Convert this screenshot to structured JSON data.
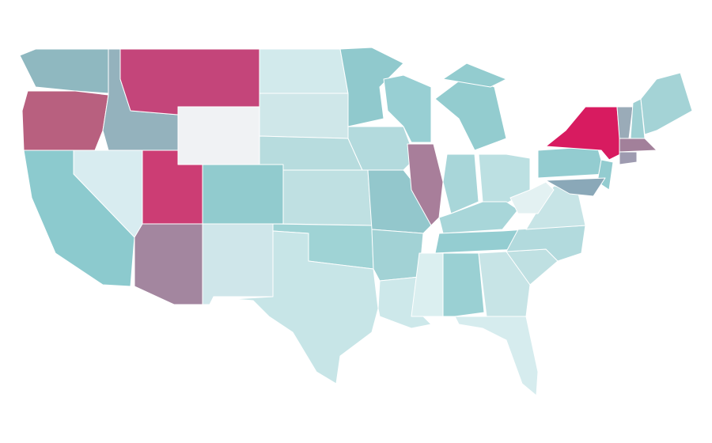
{
  "map": {
    "region_colors": [
      "#8fb8c0",
      "#b8607f",
      "#94b2bd",
      "#c4457a",
      "#f0f2f4",
      "#d8ecf0",
      "#8ccace",
      "#cc3d74",
      "#a3869f",
      "#91cbce",
      "#cfe6ea",
      "#d2eaec",
      "#cfe7e9",
      "#b7dcde",
      "#bfe0e2",
      "#9fd3d5",
      "#c7e5e7",
      "#90c9cd",
      "#b3dadd",
      "#93c7cc",
      "#a2d2d5",
      "#cde8ea",
      "#98cfd3",
      "#a87e9a",
      "#93cccf",
      "#a8d6d9",
      "#bce0e2",
      "#a8d6d9",
      "#94cdd1",
      "#dbeff0",
      "#9ad0d3",
      "#c7e4e6",
      "#d6ecee",
      "#bfe0e2",
      "#b2dadd",
      "#c7e4e6",
      "#e3f1f2",
      "#93ccd0",
      "#d81b60",
      "#93ccd0",
      "#8aa8b8",
      "#9aabb8",
      "#9fd0d3",
      "#a4d3d6",
      "#a2809a",
      "#9e9bb0",
      "#93cccf"
    ]
  }
}
